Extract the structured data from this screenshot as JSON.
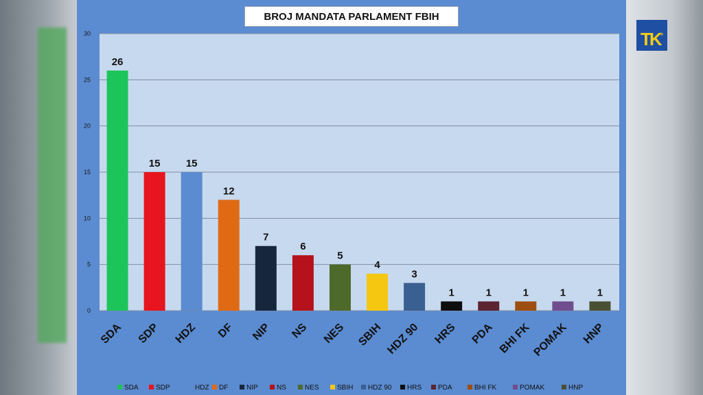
{
  "chart_data": {
    "type": "bar",
    "title": "BROJ MANDATA PARLAMENT FBIH",
    "xlabel": "",
    "ylabel": "",
    "ylim": [
      0,
      30
    ],
    "yticks": [
      0,
      5,
      10,
      15,
      20,
      25,
      30
    ],
    "grid": true,
    "legend_position": "bottom",
    "categories": [
      "SDA",
      "SDP",
      "HDZ",
      "DF",
      "NIP",
      "NS",
      "NES",
      "SBIH",
      "HDZ 90",
      "HRS",
      "PDA",
      "BHI FK",
      "POMAK",
      "HNP"
    ],
    "values": [
      26,
      15,
      15,
      12,
      7,
      6,
      5,
      4,
      3,
      1,
      1,
      1,
      1,
      1
    ],
    "colors": [
      "#1cc45a",
      "#e8141f",
      "#5b8bd0",
      "#e06a14",
      "#16263d",
      "#b5121b",
      "#4e6a2a",
      "#f5c710",
      "#3a5f92",
      "#0e0e0e",
      "#5a2430",
      "#9c4e10",
      "#6f4d8e",
      "#4a5033"
    ],
    "legend": [
      "SDA",
      "SDP",
      "HDZ",
      "DF",
      "NIP",
      "NS",
      "NES",
      "SBIH",
      "HDZ 90",
      "HRS",
      "PDA",
      "BHI FK",
      "POMAK",
      "HNP"
    ]
  },
  "logo": {
    "text": "TK",
    "mark": "®"
  }
}
